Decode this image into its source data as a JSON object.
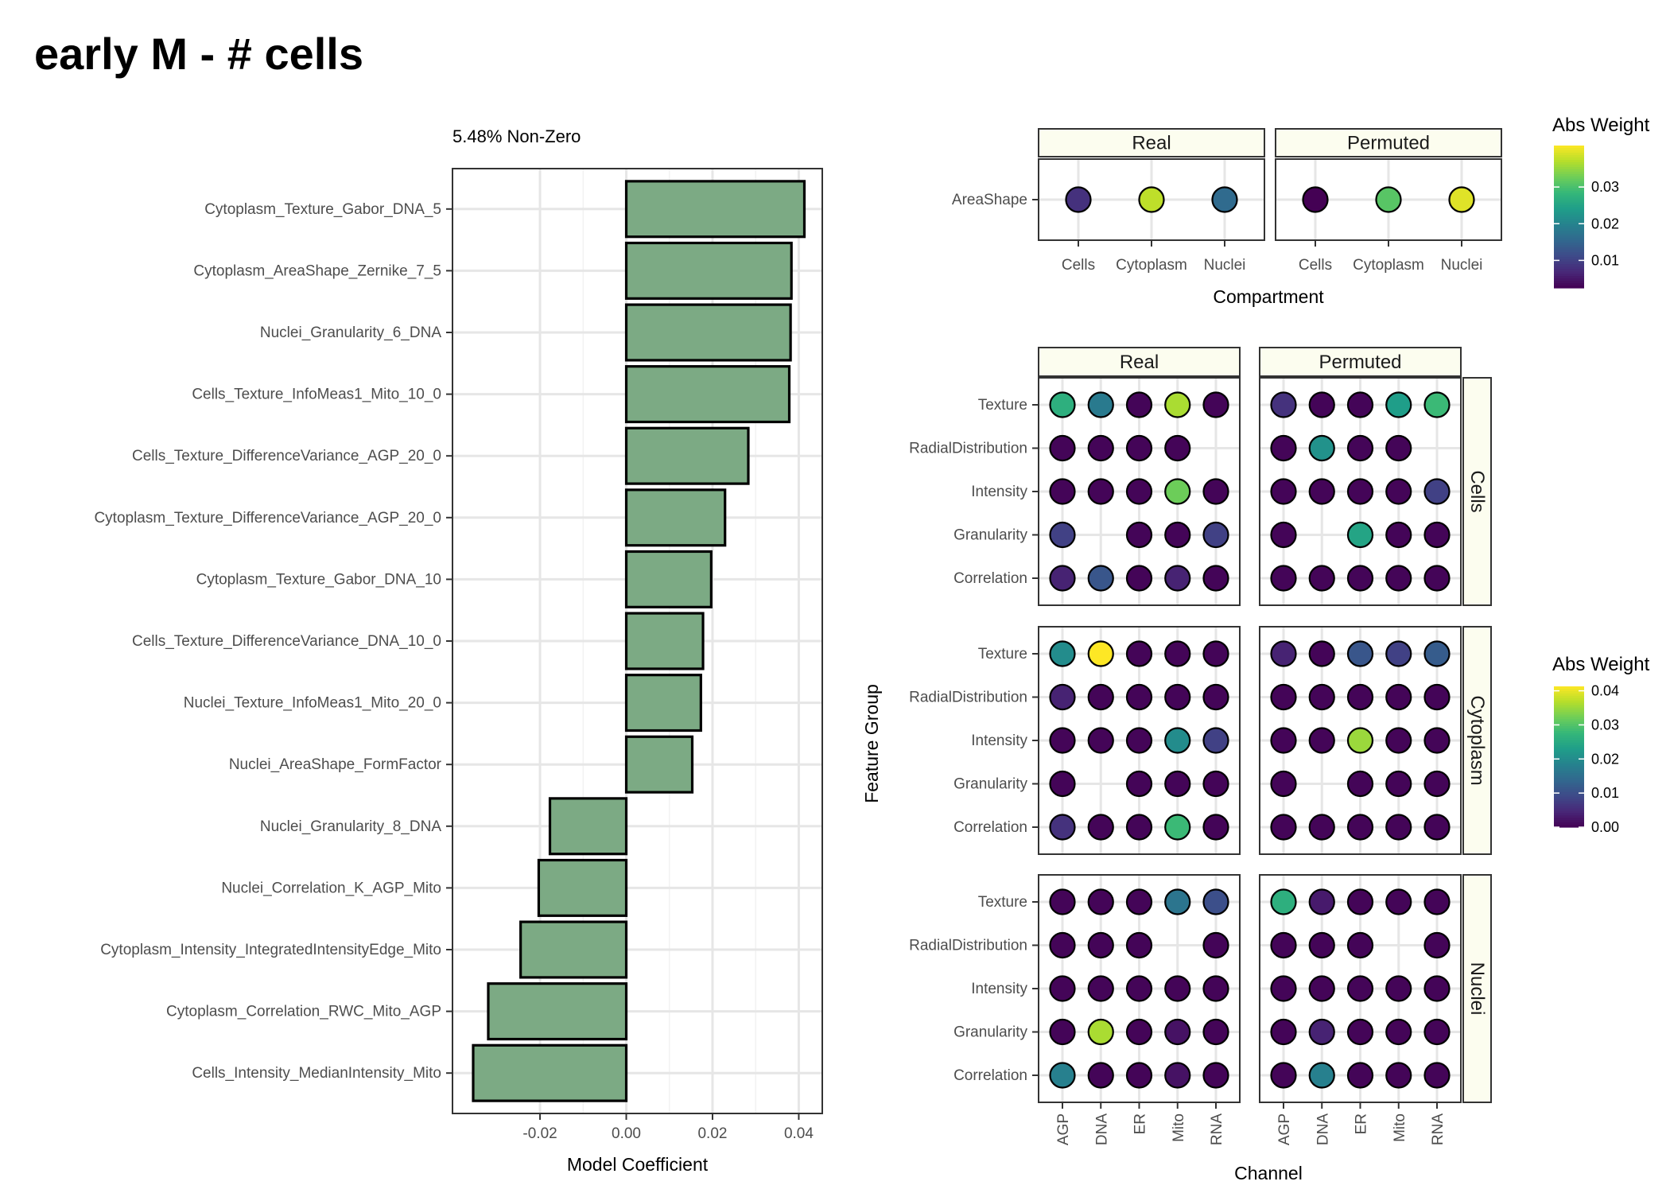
{
  "figure": {
    "title": "early M - # cells",
    "channel_label": "Channel",
    "feature_group_label": "Feature Group"
  },
  "colors": {
    "bar_fill": "#7caa84",
    "bar_border": "#000000",
    "grid": "#e6e6e6",
    "strip_fill": "#fcfdef",
    "viridis": [
      "#440154",
      "#482878",
      "#3e4a89",
      "#31688e",
      "#26828e",
      "#1f9e89",
      "#35b779",
      "#6ece58",
      "#b5de2b",
      "#fde725"
    ]
  },
  "chart_data": [
    {
      "type": "bar",
      "orientation": "horizontal",
      "subtitle": "5.48% Non-Zero",
      "xlabel": "Model Coefficient",
      "xlim": [
        -0.0355,
        0.0425
      ],
      "xticks": [
        -0.02,
        0.0,
        0.02,
        0.04
      ],
      "xtick_labels": [
        "-0.02",
        "0.00",
        "0.02",
        "0.04"
      ],
      "categories": [
        "Cytoplasm_Texture_Gabor_DNA_5",
        "Cytoplasm_AreaShape_Zernike_7_5",
        "Nuclei_Granularity_6_DNA",
        "Cells_Texture_InfoMeas1_Mito_10_0",
        "Cells_Texture_DifferenceVariance_AGP_20_0",
        "Cytoplasm_Texture_DifferenceVariance_AGP_20_0",
        "Cytoplasm_Texture_Gabor_DNA_10",
        "Cells_Texture_DifferenceVariance_DNA_10_0",
        "Nuclei_Texture_InfoMeas1_Mito_20_0",
        "Nuclei_AreaShape_FormFactor",
        "Nuclei_Granularity_8_DNA",
        "Nuclei_Correlation_K_AGP_Mito",
        "Cytoplasm_Intensity_IntegratedIntensityEdge_Mito",
        "Cytoplasm_Correlation_RWC_Mito_AGP",
        "Cells_Intensity_MedianIntensity_Mito"
      ],
      "values": [
        0.0413,
        0.0383,
        0.0381,
        0.0378,
        0.0283,
        0.0229,
        0.0197,
        0.0178,
        0.0173,
        0.0153,
        -0.0177,
        -0.0203,
        -0.0245,
        -0.032,
        -0.0355
      ],
      "grid": true
    },
    {
      "type": "scatter",
      "xlabel": "Compartment",
      "x_categories": [
        "Cells",
        "Cytoplasm",
        "Nuclei"
      ],
      "y_categories": [
        "AreaShape"
      ],
      "facets": [
        "Real",
        "Permuted"
      ],
      "legend": {
        "title": "Abs Weight",
        "range": [
          0.0025,
          0.0413
        ],
        "ticks": [
          0.01,
          0.02,
          0.03
        ],
        "tick_labels": [
          "0.01",
          "0.02",
          "0.03"
        ],
        "placement": "right"
      },
      "values": {
        "Real": [
          [
            0.008,
            0.0375,
            0.016
          ]
        ],
        "Permuted": [
          [
            0.0025,
            0.031,
            0.0395
          ]
        ]
      }
    },
    {
      "type": "scatter",
      "xlabel": "Channel",
      "ylabel": "Feature Group",
      "x_categories": [
        "AGP",
        "DNA",
        "ER",
        "Mito",
        "RNA"
      ],
      "y_categories": [
        "Texture",
        "RadialDistribution",
        "Intensity",
        "Granularity",
        "Correlation"
      ],
      "col_facets": [
        "Real",
        "Permuted"
      ],
      "row_facets": [
        "Cells",
        "Cytoplasm",
        "Nuclei"
      ],
      "legend": {
        "title": "Abs Weight",
        "range": [
          0,
          0.0413
        ],
        "ticks": [
          0.0,
          0.01,
          0.02,
          0.03,
          0.04
        ],
        "tick_labels": [
          "0.00",
          "0.01",
          "0.02",
          "0.03",
          "0.04"
        ],
        "placement": "right"
      },
      "values": {
        "Cells": {
          "Real": [
            [
              0.026,
              0.017,
              0.0005,
              0.036,
              0.0005
            ],
            [
              0.0005,
              0.0005,
              0.0005,
              0.0005,
              null
            ],
            [
              0.0005,
              0.0005,
              0.0005,
              0.032,
              0.0005
            ],
            [
              0.008,
              null,
              0.0005,
              0.0005,
              0.008
            ],
            [
              0.004,
              0.011,
              0.0005,
              0.004,
              0.0005
            ]
          ],
          "Permuted": [
            [
              0.006,
              0.0005,
              0.0005,
              0.023,
              0.028
            ],
            [
              0.0005,
              0.021,
              0.0005,
              0.0005,
              null
            ],
            [
              0.0005,
              0.0005,
              0.0005,
              0.0005,
              0.008
            ],
            [
              0.0005,
              null,
              0.024,
              0.0005,
              0.0005
            ],
            [
              0.0005,
              0.0005,
              0.0005,
              0.0005,
              0.0005
            ]
          ]
        },
        "Cytoplasm": {
          "Real": [
            [
              0.02,
              0.0413,
              0.0005,
              0.0005,
              0.0005
            ],
            [
              0.004,
              0.0005,
              0.0005,
              0.0005,
              0.0005
            ],
            [
              0.0005,
              0.0005,
              0.0005,
              0.02,
              0.008
            ],
            [
              0.0005,
              null,
              0.0005,
              0.0005,
              0.0005
            ],
            [
              0.006,
              0.0005,
              0.0005,
              0.028,
              0.0005
            ]
          ],
          "Permuted": [
            [
              0.004,
              0.0005,
              0.011,
              0.008,
              0.012
            ],
            [
              0.0005,
              0.0005,
              0.0005,
              0.0005,
              0.0005
            ],
            [
              0.0005,
              0.0005,
              0.035,
              0.0005,
              0.0005
            ],
            [
              0.0005,
              null,
              0.0005,
              0.0005,
              0.0005
            ],
            [
              0.0005,
              0.0005,
              0.0005,
              0.0005,
              0.0005
            ]
          ]
        },
        "Nuclei": {
          "Real": [
            [
              0.0005,
              0.0005,
              0.0005,
              0.016,
              0.01
            ],
            [
              0.0005,
              0.0005,
              0.0005,
              null,
              0.0005
            ],
            [
              0.0005,
              0.0005,
              0.0005,
              0.0005,
              0.0005
            ],
            [
              0.0005,
              0.036,
              0.0005,
              0.002,
              0.0005
            ],
            [
              0.018,
              0.0005,
              0.0005,
              0.002,
              0.0005
            ]
          ],
          "Permuted": [
            [
              0.026,
              0.003,
              0.0005,
              0.0005,
              0.0005
            ],
            [
              0.0005,
              0.0005,
              0.0005,
              null,
              0.0005
            ],
            [
              0.0005,
              0.0005,
              0.0005,
              0.0005,
              0.0005
            ],
            [
              0.0005,
              0.004,
              0.0005,
              0.0005,
              0.0005
            ],
            [
              0.0005,
              0.018,
              0.0005,
              0.0005,
              0.0005
            ]
          ]
        }
      }
    }
  ]
}
